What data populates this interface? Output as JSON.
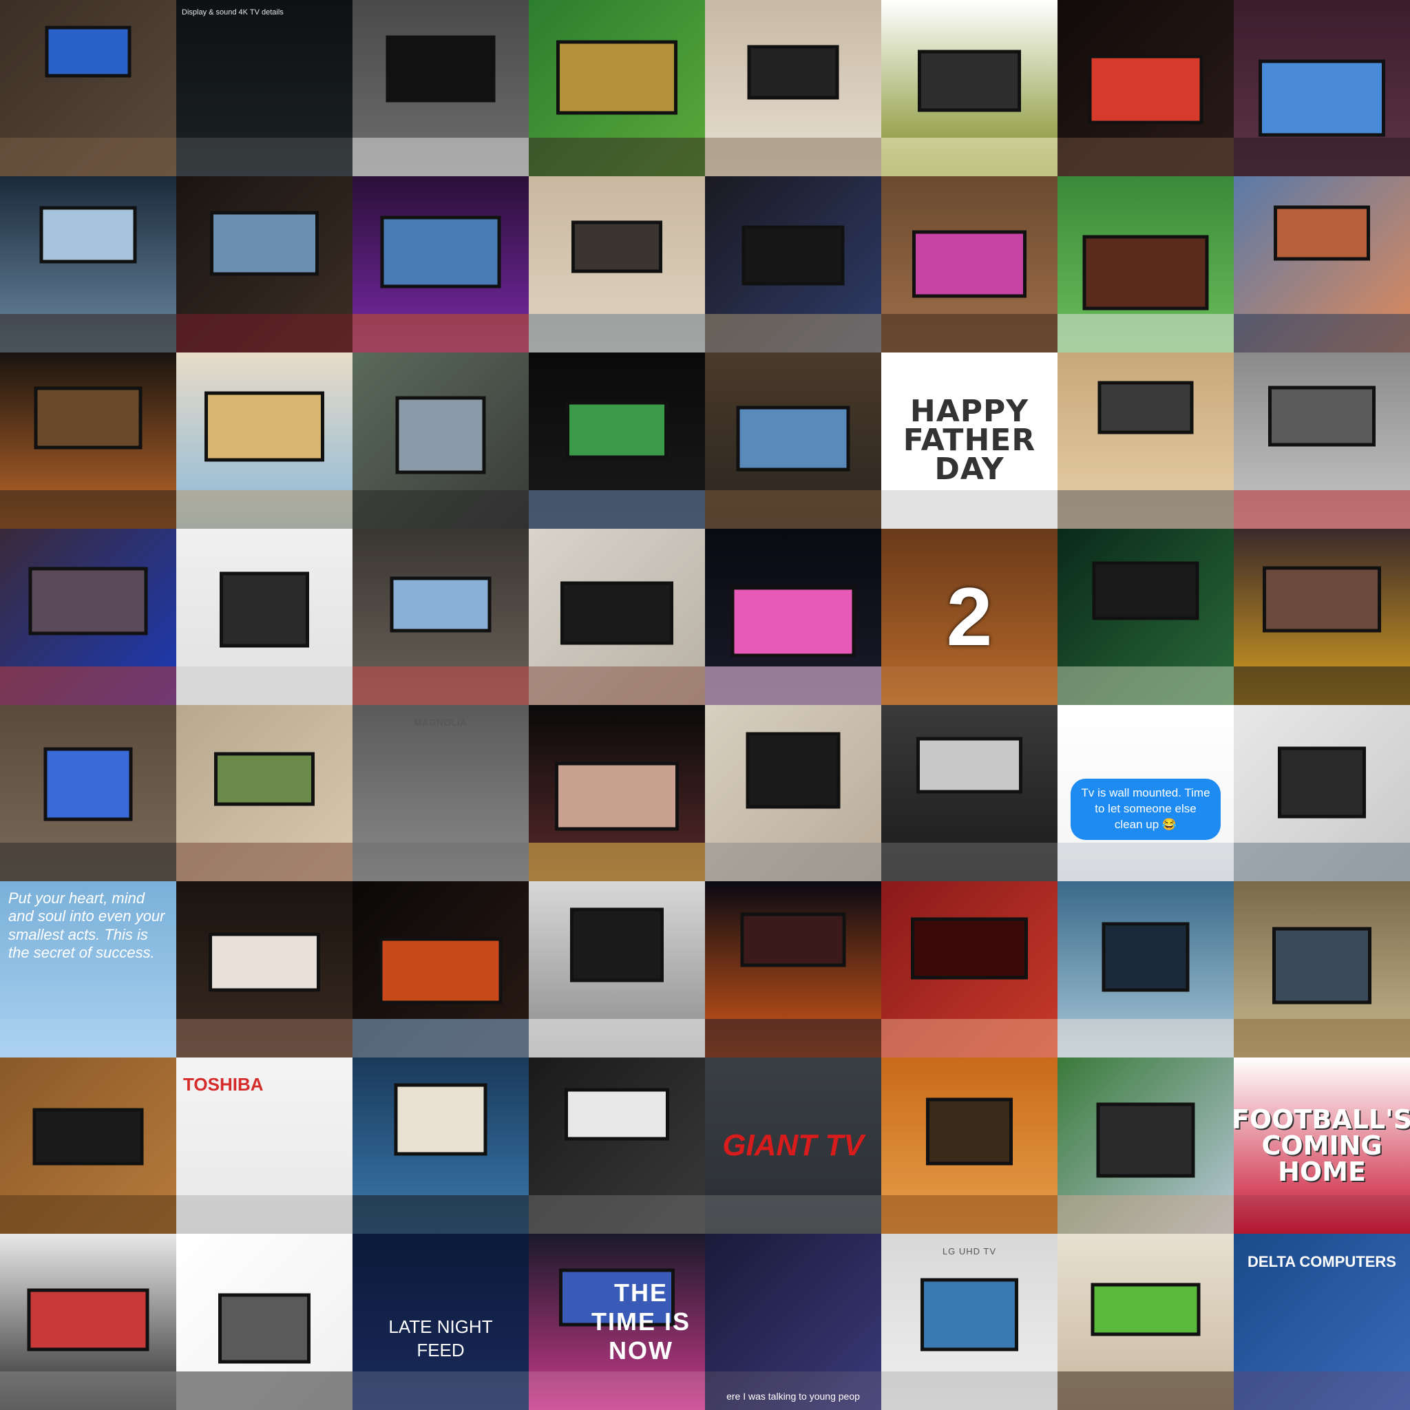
{
  "collage": {
    "tiles": [
      {
        "text": "",
        "desc": "living-room-tv",
        "colors": [
          "#3b2e24",
          "#5a4a3c",
          "#2a62c9",
          "#7a5d44"
        ]
      },
      {
        "text": "Display & sound   4K TV details",
        "desc": "tv-settings-screen",
        "colors": [
          "#0e1112",
          "#1b2125",
          "#33a45a",
          "#cfcfcf"
        ]
      },
      {
        "text": "",
        "desc": "stone-wall-tv",
        "colors": [
          "#4a4a4a",
          "#6e6e6e",
          "#111",
          "#dcdcdc"
        ]
      },
      {
        "text": "",
        "desc": "soccer-on-tv",
        "colors": [
          "#2c7d2f",
          "#5aab3a",
          "#b4923b",
          "#3a2a22"
        ]
      },
      {
        "text": "",
        "desc": "tv-on-stand",
        "colors": [
          "#c8b9a4",
          "#e8e0d2",
          "#222",
          "#8b775d"
        ]
      },
      {
        "text": "",
        "desc": "illustrated-kids-tv",
        "colors": [
          "#ffffff",
          "#7b8a1f",
          "#2d2d2d",
          "#f5f0d0"
        ]
      },
      {
        "text": "",
        "desc": "woman-portrait",
        "colors": [
          "#120b0a",
          "#2a1b17",
          "#d63a2a",
          "#6a4a3e"
        ]
      },
      {
        "text": "",
        "desc": "dark-room-tv",
        "colors": [
          "#3b1d2c",
          "#5e3547",
          "#4a8bd8",
          "#2a1820"
        ]
      },
      {
        "text": "",
        "desc": "car-selfie",
        "colors": [
          "#1a2a3a",
          "#6d8aa4",
          "#a7c3dc",
          "#2f2622"
        ]
      },
      {
        "text": "",
        "desc": "wine-glasses-tv",
        "colors": [
          "#1a1512",
          "#3c2e24",
          "#6a8fb0",
          "#7a1d2a"
        ]
      },
      {
        "text": "",
        "desc": "purple-home-theater",
        "colors": [
          "#2a0f38",
          "#7a2aa8",
          "#4a7bb4",
          "#c05520"
        ]
      },
      {
        "text": "",
        "desc": "crt-tv",
        "colors": [
          "#c9b8a0",
          "#e0d4c0",
          "#3a3530",
          "#6b7d8a"
        ]
      },
      {
        "text": "",
        "desc": "dead-by-daylight-tv",
        "colors": [
          "#1b1a22",
          "#2f3c6a",
          "#171717",
          "#a09070"
        ]
      },
      {
        "text": "",
        "desc": "kid-watching-cartoon",
        "colors": [
          "#6b4a30",
          "#a0704a",
          "#c844a4",
          "#3a2a1a"
        ]
      },
      {
        "text": "",
        "desc": "football-cake",
        "colors": [
          "#3a8a3a",
          "#6bbf5a",
          "#5a2a1a",
          "#ddd"
        ]
      },
      {
        "text": "",
        "desc": "city-skyline",
        "colors": [
          "#5a7aa8",
          "#e08a5a",
          "#b8603a",
          "#2a3a58"
        ]
      },
      {
        "text": "",
        "desc": "fireplace-on-tv",
        "colors": [
          "#1a1410",
          "#c06a2a",
          "#6a4a2a",
          "#2a201a"
        ]
      },
      {
        "text": "",
        "desc": "camel-desert-tv",
        "colors": [
          "#e8dcc8",
          "#8ab8d8",
          "#d8b870",
          "#b89a70"
        ]
      },
      {
        "text": "",
        "desc": "man-carrying-tv",
        "colors": [
          "#5a6a5a",
          "#3a3a3a",
          "#8a9aa8",
          "#2a2a2a"
        ]
      },
      {
        "text": "",
        "desc": "baseball-dark-room",
        "colors": [
          "#0a0a0a",
          "#1a1a1a",
          "#3a9a4a",
          "#6a8ab0"
        ]
      },
      {
        "text": "",
        "desc": "cozy-living-room",
        "colors": [
          "#4a3a2a",
          "#2a2520",
          "#5a8aba",
          "#7a5a3a"
        ]
      },
      {
        "text": "HAPPY\nFATHER\nDAY",
        "desc": "fathers-day-text",
        "colors": [
          "#ffffff",
          "#ffffff",
          "#333333",
          "#333333"
        ]
      },
      {
        "text": "",
        "desc": "ceiling-fan-room",
        "colors": [
          "#c8a87a",
          "#e8d0a8",
          "#3a3a3a",
          "#5a5a5a"
        ]
      },
      {
        "text": "",
        "desc": "street-market",
        "colors": [
          "#8a8a8a",
          "#c8c8c8",
          "#5a5a5a",
          "#b82a2a"
        ]
      },
      {
        "text": "",
        "desc": "tennis-on-tv",
        "colors": [
          "#3a2a3a",
          "#1a3ab8",
          "#5a4a5a",
          "#b83a3a"
        ]
      },
      {
        "text": "",
        "desc": "white-media-console",
        "colors": [
          "#f0f0f0",
          "#e0e0e0",
          "#2a2a2a",
          "#cfcfcf"
        ]
      },
      {
        "text": "",
        "desc": "tv-wall-unit",
        "colors": [
          "#3a3632",
          "#6a6258",
          "#8ab0d8",
          "#c84a4a"
        ]
      },
      {
        "text": "",
        "desc": "movie-on-tv",
        "colors": [
          "#d8d4cc",
          "#b8b0a4",
          "#1a1a1a",
          "#8a5a4a"
        ]
      },
      {
        "text": "",
        "desc": "dark-room-pink-glow",
        "colors": [
          "#0a0a12",
          "#1a1a2a",
          "#e85ab8",
          "#ffd0f0"
        ]
      },
      {
        "text": "2",
        "desc": "poker-chips",
        "colors": [
          "#6a3a1a",
          "#b86a2a",
          "#3a6a5a",
          "#c8a070"
        ]
      },
      {
        "text": "",
        "desc": "big-screen-nature",
        "colors": [
          "#0a2a1a",
          "#2a6a3a",
          "#1a1a1a",
          "#b8c8a8"
        ]
      },
      {
        "text": "",
        "desc": "silhouette-sunset-tv",
        "colors": [
          "#3a2a2a",
          "#d8a020",
          "#6a4a3a",
          "#1a1a1a"
        ]
      },
      {
        "text": "",
        "desc": "tv-on-wall-menu",
        "colors": [
          "#5a4a3a",
          "#7a6a5a",
          "#3a6ad8",
          "#2a2a2a"
        ]
      },
      {
        "text": "",
        "desc": "bird-on-big-screen",
        "colors": [
          "#b8a890",
          "#d8c8b0",
          "#6a8a4a",
          "#7a4a3a"
        ]
      },
      {
        "text": "MAGNOLIA",
        "desc": "delivery-truck",
        "colors": [
          "#5a5a5a",
          "#8a8a8a",
          "#f0f0f0",
          "#3a3a3a"
        ]
      },
      {
        "text": "",
        "desc": "couple-selfie",
        "colors": [
          "#0a0a0a",
          "#5a2a2a",
          "#c8a090",
          "#e8c050"
        ]
      },
      {
        "text": "",
        "desc": "brick-fireplace",
        "colors": [
          "#d8cfc0",
          "#b8ab98",
          "#1a1a1a",
          "#8a8a8a"
        ]
      },
      {
        "text": "",
        "desc": "bw-tree-on-tv",
        "colors": [
          "#3a3a3a",
          "#1a1a1a",
          "#c8c8c8",
          "#6a6a6a"
        ]
      },
      {
        "text": "Tv is wall mounted. Time to let someone else clean up 😂",
        "desc": "text-message",
        "colors": [
          "#ffffff",
          "#f4f4f4",
          "#6a4a2a",
          "#3a4a6a"
        ]
      },
      {
        "text": "",
        "desc": "railroad-on-tv",
        "colors": [
          "#e8e8e8",
          "#c8c8c8",
          "#2a2a2a",
          "#6a7a8a"
        ]
      },
      {
        "text": "Put your heart, mind and soul into even your smallest acts. This is the secret of success.",
        "desc": "motivation-quote",
        "colors": [
          "#7ab0d8",
          "#a8d0f0",
          "#4a7ab0",
          "#c8e0f8"
        ]
      },
      {
        "text": "",
        "desc": "couple-on-couch",
        "colors": [
          "#1a1410",
          "#3a2a20",
          "#e8e0d8",
          "#8a6a58"
        ]
      },
      {
        "text": "",
        "desc": "dark-gaming-room",
        "colors": [
          "#0a0808",
          "#2a1a14",
          "#c84a1a",
          "#8ab0d8"
        ]
      },
      {
        "text": "",
        "desc": "bw-mounting-tv",
        "colors": [
          "#d8d8d8",
          "#8a8a8a",
          "#1a1a1a",
          "#f0f0f0"
        ]
      },
      {
        "text": "",
        "desc": "sunset-parking-lot",
        "colors": [
          "#0a0a12",
          "#d85a1a",
          "#3a1a1a",
          "#1a1a2a"
        ]
      },
      {
        "text": "",
        "desc": "convention-stage",
        "colors": [
          "#8a1a1a",
          "#c83a2a",
          "#3a0a0a",
          "#e8a080"
        ]
      },
      {
        "text": "",
        "desc": "rugby-players",
        "colors": [
          "#3a6a8a",
          "#a8c8d8",
          "#1a2a3a",
          "#e8e0d8"
        ]
      },
      {
        "text": "",
        "desc": "showroom-living-room",
        "colors": [
          "#7a6a4a",
          "#c8b890",
          "#3a4a5a",
          "#8a6a3a"
        ]
      },
      {
        "text": "",
        "desc": "wood-paneled-room",
        "colors": [
          "#8a5a2a",
          "#b87a3a",
          "#1a1a1a",
          "#5a3a1a"
        ]
      },
      {
        "text": "TOSHIBA",
        "desc": "toshiba-box",
        "colors": [
          "#f4f4f4",
          "#e8e8e8",
          "#d62b2b",
          "#2a2a2a"
        ]
      },
      {
        "text": "",
        "desc": "fortnite-over-fireplace",
        "colors": [
          "#1a3a5a",
          "#3a7ab0",
          "#e8e0d0",
          "#1a1a1a"
        ]
      },
      {
        "text": "",
        "desc": "tv-back-unboxed",
        "colors": [
          "#1a1a1a",
          "#3a3a3a",
          "#e8e8e8",
          "#6a6a6a"
        ]
      },
      {
        "text": "GIANT TV",
        "desc": "giant-tv-logo",
        "colors": [
          "#3a3f44",
          "#2a2e32",
          "#d81b1b",
          "#ffffff"
        ]
      },
      {
        "text": "",
        "desc": "closeup-fur-tv",
        "colors": [
          "#c86a1a",
          "#e8a04a",
          "#3a2a1a",
          "#8a4a1a"
        ]
      },
      {
        "text": "",
        "desc": "stadium-man",
        "colors": [
          "#3a7a3a",
          "#b8c8d8",
          "#2a2a2a",
          "#c8a890"
        ]
      },
      {
        "text": "FOOTBALL'S COMING HOME",
        "desc": "england-flag-text",
        "colors": [
          "#ffffff",
          "#c8102e",
          "#ffffff",
          "#3a3a3a"
        ]
      },
      {
        "text": "",
        "desc": "modern-tv-unit",
        "colors": [
          "#e8e8e8",
          "#2a2a2a",
          "#c83a3a",
          "#8a8a8a"
        ]
      },
      {
        "text": "",
        "desc": "bw-framed-photo",
        "colors": [
          "#ffffff",
          "#f0f0f0",
          "#5a5a5a",
          "#2a2a2a"
        ]
      },
      {
        "text": "LATE NIGHT\nFEED",
        "desc": "late-night-feed-logo",
        "colors": [
          "#0a1a3a",
          "#1a2a5a",
          "#7ad8d8",
          "#ffffff"
        ]
      },
      {
        "text": "THE TIME IS\nNOW",
        "desc": "time-is-now-tv",
        "colors": [
          "#1a1a2a",
          "#c83a8a",
          "#3a5ab8",
          "#ffffff"
        ]
      },
      {
        "text": "ere I was talking to young peop",
        "desc": "speaker-stage",
        "colors": [
          "#1a1a3a",
          "#3a3a7a",
          "#5a5a5a",
          "#c8a890"
        ]
      },
      {
        "text": "LG UHD TV",
        "desc": "store-tv-boxes",
        "colors": [
          "#d8d8d8",
          "#f0f0f0",
          "#3a7ab0",
          "#2a2a2a"
        ]
      },
      {
        "text": "",
        "desc": "boy-by-tv-shop",
        "colors": [
          "#e8e0d0",
          "#c8b8a0",
          "#5ab83a",
          "#3a2a1a"
        ]
      },
      {
        "text": "DELTA COMPUTERS",
        "desc": "delta-van",
        "colors": [
          "#1a4a8a",
          "#3a6ab8",
          "#e8e8e8",
          "#c82a2a"
        ]
      }
    ]
  }
}
